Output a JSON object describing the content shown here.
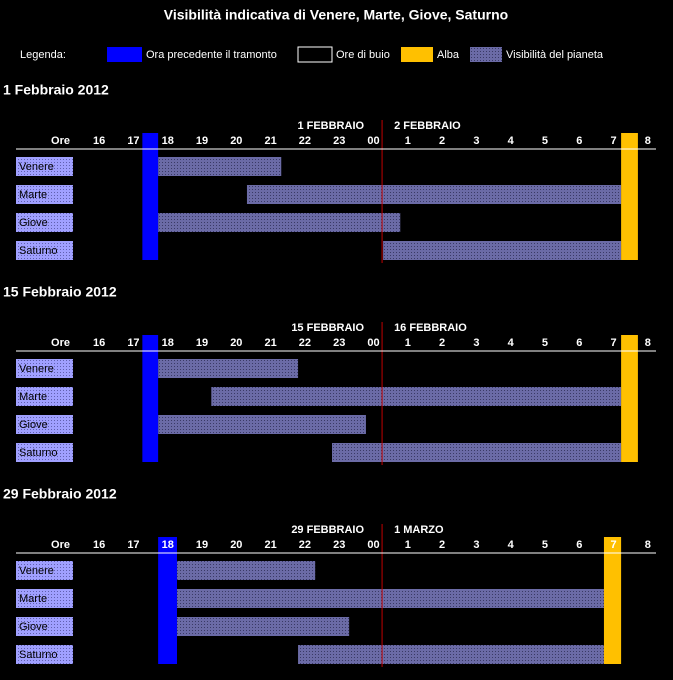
{
  "title": "Visibilità indicativa di Venere, Marte, Giove, Saturno",
  "legend": {
    "label": "Legenda:",
    "items": [
      {
        "name": "Ora precedente il tramonto",
        "color": "#0000ff"
      },
      {
        "name": "Ore di buio",
        "color": "#000000"
      },
      {
        "name": "Alba",
        "color": "#ffc000"
      },
      {
        "name": "Visibilità del pianeta",
        "color": "#6b6ba6"
      }
    ]
  },
  "chart_data": [
    {
      "type": "gantt",
      "title": "1 Febbraio 2012",
      "axis_label": "Ore",
      "dates": [
        "1 FEBBRAIO",
        "2 FEBBRAIO"
      ],
      "categories": [
        "Venere",
        "Marte",
        "Giove",
        "Saturno"
      ],
      "start": [
        17.72,
        20.31,
        17.72,
        24.28
      ],
      "end": [
        21.31,
        31.22,
        24.78,
        31.22
      ],
      "sunset": [
        17.26,
        17.72
      ],
      "sunrise": [
        31.22,
        31.71
      ],
      "midnight_line": 24.25,
      "xlim": [
        15.5,
        32.5
      ],
      "xticks": [
        16,
        17,
        18,
        19,
        20,
        21,
        22,
        23,
        {
          "value": 24,
          "label": "00"
        },
        {
          "value": 25,
          "label": "1"
        },
        {
          "value": 26,
          "label": "2"
        },
        {
          "value": 27,
          "label": "3"
        },
        {
          "value": 28,
          "label": "4"
        },
        {
          "value": 29,
          "label": "5"
        },
        {
          "value": 30,
          "label": "6"
        },
        {
          "value": 31,
          "label": "7"
        },
        {
          "value": 32,
          "label": "8"
        }
      ]
    },
    {
      "type": "gantt",
      "title": "15 Febbraio 2012",
      "axis_label": "Ore",
      "dates": [
        "15 FEBBRAIO",
        "16 FEBBRAIO"
      ],
      "categories": [
        "Venere",
        "Marte",
        "Giove",
        "Saturno"
      ],
      "start": [
        17.72,
        19.27,
        17.72,
        22.79
      ],
      "end": [
        21.8,
        31.22,
        23.78,
        31.22
      ],
      "sunset": [
        17.26,
        17.72
      ],
      "sunrise": [
        31.22,
        31.71
      ],
      "midnight_line": 24.25,
      "xlim": [
        15.5,
        32.5
      ],
      "xticks": [
        16,
        17,
        18,
        19,
        20,
        21,
        22,
        23,
        {
          "value": 24,
          "label": "00"
        },
        {
          "value": 25,
          "label": "1"
        },
        {
          "value": 26,
          "label": "2"
        },
        {
          "value": 27,
          "label": "3"
        },
        {
          "value": 28,
          "label": "4"
        },
        {
          "value": 29,
          "label": "5"
        },
        {
          "value": 30,
          "label": "6"
        },
        {
          "value": 31,
          "label": "7"
        },
        {
          "value": 32,
          "label": "8"
        }
      ]
    },
    {
      "type": "gantt",
      "title": "29 Febbraio 2012",
      "axis_label": "Ore",
      "dates": [
        "29 FEBBRAIO",
        "1 MARZO"
      ],
      "categories": [
        "Venere",
        "Marte",
        "Giove",
        "Saturno"
      ],
      "start": [
        18.27,
        18.27,
        18.27,
        21.8
      ],
      "end": [
        22.3,
        30.72,
        23.29,
        30.72
      ],
      "sunset": [
        17.72,
        18.27
      ],
      "sunrise": [
        30.72,
        31.22
      ],
      "midnight_line": 24.25,
      "xlim": [
        15.5,
        32.5
      ],
      "xticks": [
        16,
        17,
        18,
        19,
        20,
        21,
        22,
        23,
        {
          "value": 24,
          "label": "00"
        },
        {
          "value": 25,
          "label": "1"
        },
        {
          "value": 26,
          "label": "2"
        },
        {
          "value": 27,
          "label": "3"
        },
        {
          "value": 28,
          "label": "4"
        },
        {
          "value": 29,
          "label": "5"
        },
        {
          "value": 30,
          "label": "6"
        },
        {
          "value": 31,
          "label": "7"
        },
        {
          "value": 32,
          "label": "8"
        }
      ]
    }
  ]
}
